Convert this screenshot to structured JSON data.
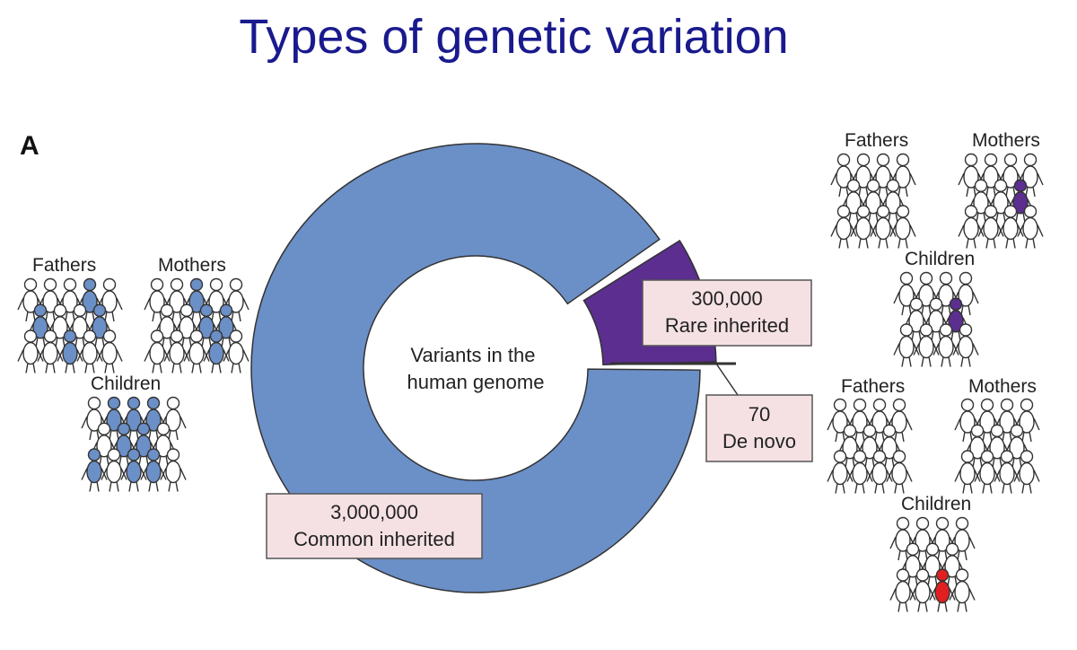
{
  "title": "Types of genetic variation",
  "panel_letter": "A",
  "center_label": [
    "Variants in the",
    "human genome"
  ],
  "colors": {
    "title": "#1a1a8e",
    "common": "#6b8fc7",
    "rare": "#5b2e8f",
    "de_novo": "#e02020",
    "label_box": "#f5e1e4"
  },
  "segments": [
    {
      "name": "common",
      "value": "3,000,000",
      "label": "Common inherited"
    },
    {
      "name": "rare",
      "value": "300,000",
      "label": "Rare inherited"
    },
    {
      "name": "de_novo",
      "value": "70",
      "label": "De novo"
    }
  ],
  "groups": {
    "common": {
      "fathers": "Fathers",
      "mothers": "Mothers",
      "children": "Children"
    },
    "rare": {
      "fathers": "Fathers",
      "mothers": "Mothers",
      "children": "Children"
    },
    "de_novo": {
      "fathers": "Fathers",
      "mothers": "Mothers",
      "children": "Children"
    }
  }
}
